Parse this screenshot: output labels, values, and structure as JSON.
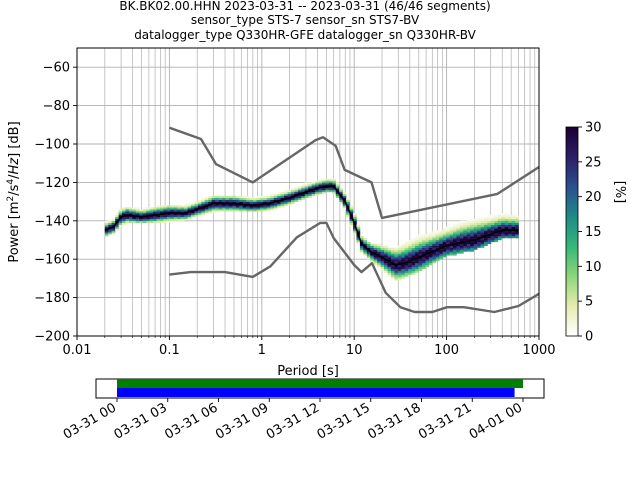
{
  "chart_data": {
    "type": "heatmap",
    "title": [
      "BK.BK02.00.HHN   2023-03-31 -- 2023-03-31  (46/46 segments)",
      "sensor_type STS-7 sensor_sn STS7-BV",
      "datalogger_type Q330HR-GFE datalogger_sn Q330HR-BV"
    ],
    "xlabel": "Period [s]",
    "ylabel": "Power [m²/s⁴/Hz] [dB]",
    "x_scale": "log",
    "xlim": [
      0.01,
      1000
    ],
    "ylim": [
      -200,
      -50
    ],
    "x_ticks": [
      0.01,
      0.1,
      1,
      10,
      100,
      1000
    ],
    "x_tick_labels": [
      "0.01",
      "0.1",
      "1",
      "10",
      "100",
      "1000"
    ],
    "y_ticks": [
      -200,
      -180,
      -160,
      -140,
      -120,
      -100,
      -80,
      -60
    ],
    "y_tick_labels": [
      "−200",
      "−180",
      "−160",
      "−140",
      "−120",
      "−100",
      "−80",
      "−60"
    ],
    "grid": true,
    "colorbar": {
      "label": "[%]",
      "min": 0,
      "max": 30,
      "ticks": [
        0,
        5,
        10,
        15,
        20,
        25,
        30
      ],
      "colors": [
        "#ffffff",
        "#e6ecb0",
        "#8ed67a",
        "#35b779",
        "#1e8a86",
        "#2b4f8f",
        "#2c1e66",
        "#1a0033"
      ]
    },
    "mean_curve": {
      "period": [
        0.02,
        0.025,
        0.03,
        0.035,
        0.05,
        0.07,
        0.1,
        0.15,
        0.2,
        0.3,
        0.5,
        0.8,
        1.2,
        2,
        3,
        4,
        5,
        6,
        8,
        10,
        12,
        15,
        20,
        28,
        35,
        50,
        70,
        100,
        150,
        200,
        300,
        400,
        600
      ],
      "db": [
        -145,
        -143,
        -138,
        -137,
        -138,
        -137,
        -136,
        -136,
        -134,
        -131,
        -131,
        -132,
        -131,
        -128,
        -125,
        -123,
        -122,
        -122,
        -130,
        -141,
        -152,
        -156,
        -159,
        -163,
        -162,
        -159,
        -156,
        -153,
        -151,
        -150,
        -147,
        -145,
        -145
      ]
    },
    "psd_cloud": {
      "period": [
        0.02,
        0.025,
        0.03,
        0.035,
        0.05,
        0.07,
        0.1,
        0.15,
        0.2,
        0.3,
        0.5,
        0.8,
        1.2,
        2,
        3,
        4,
        5,
        6,
        8,
        10,
        12,
        15,
        20,
        28,
        35,
        50,
        70,
        100,
        150,
        200,
        300,
        400,
        600
      ],
      "db_low": [
        -148,
        -146,
        -142,
        -141,
        -141,
        -141,
        -140,
        -139,
        -137,
        -135,
        -135,
        -135,
        -134,
        -131,
        -128,
        -126,
        -125,
        -125,
        -134,
        -146,
        -156,
        -161,
        -165,
        -171,
        -169,
        -166,
        -162,
        -158,
        -156,
        -155,
        -151,
        -149,
        -149
      ],
      "db_high": [
        -141,
        -139,
        -134,
        -133,
        -134,
        -133,
        -132,
        -132,
        -130,
        -127,
        -127,
        -128,
        -127,
        -124,
        -121,
        -119,
        -118,
        -118,
        -126,
        -136,
        -148,
        -152,
        -153,
        -155,
        -152,
        -148,
        -146,
        -143,
        -139,
        -137,
        -136,
        -135,
        -136
      ]
    },
    "noise_models": {
      "high": {
        "period": [
          0.1,
          0.22,
          0.32,
          0.8,
          3.8,
          4.6,
          6.3,
          7.9,
          15.4,
          20,
          354.8,
          1000
        ],
        "db": [
          -91.5,
          -97.4,
          -110.5,
          -120,
          -98,
          -96.5,
          -101,
          -113.5,
          -120,
          -138.5,
          -126,
          -112
        ]
      },
      "low": {
        "period": [
          0.1,
          0.17,
          0.4,
          0.8,
          1.24,
          2.4,
          4.3,
          5,
          6,
          10,
          12,
          15.6,
          21.9,
          31.6,
          45,
          70,
          101,
          154,
          328,
          600,
          1000
        ],
        "db": [
          -168,
          -166.7,
          -166.7,
          -169.2,
          -163.7,
          -148.6,
          -141.1,
          -141.1,
          -149,
          -163,
          -166.7,
          -162.1,
          -177.5,
          -185,
          -187.5,
          -187.5,
          -185,
          -185,
          -187.5,
          -184.4,
          -178
        ]
      }
    },
    "time_axis": {
      "start_hour": 0,
      "end_hour": 24,
      "tick_hours": [
        0,
        3,
        6,
        9,
        12,
        15,
        18,
        21,
        24
      ],
      "tick_labels": [
        "03-31 00",
        "03-31 03",
        "03-31 06",
        "03-31 09",
        "03-31 12",
        "03-31 15",
        "03-31 18",
        "03-31 21",
        "04-01 00"
      ],
      "data_coverage": {
        "start_hour": 0,
        "end_hour": 24,
        "color": "#008000"
      },
      "used_segments": {
        "start_hour": 0,
        "end_hour": 23.5,
        "color": "#0000ff"
      }
    }
  }
}
